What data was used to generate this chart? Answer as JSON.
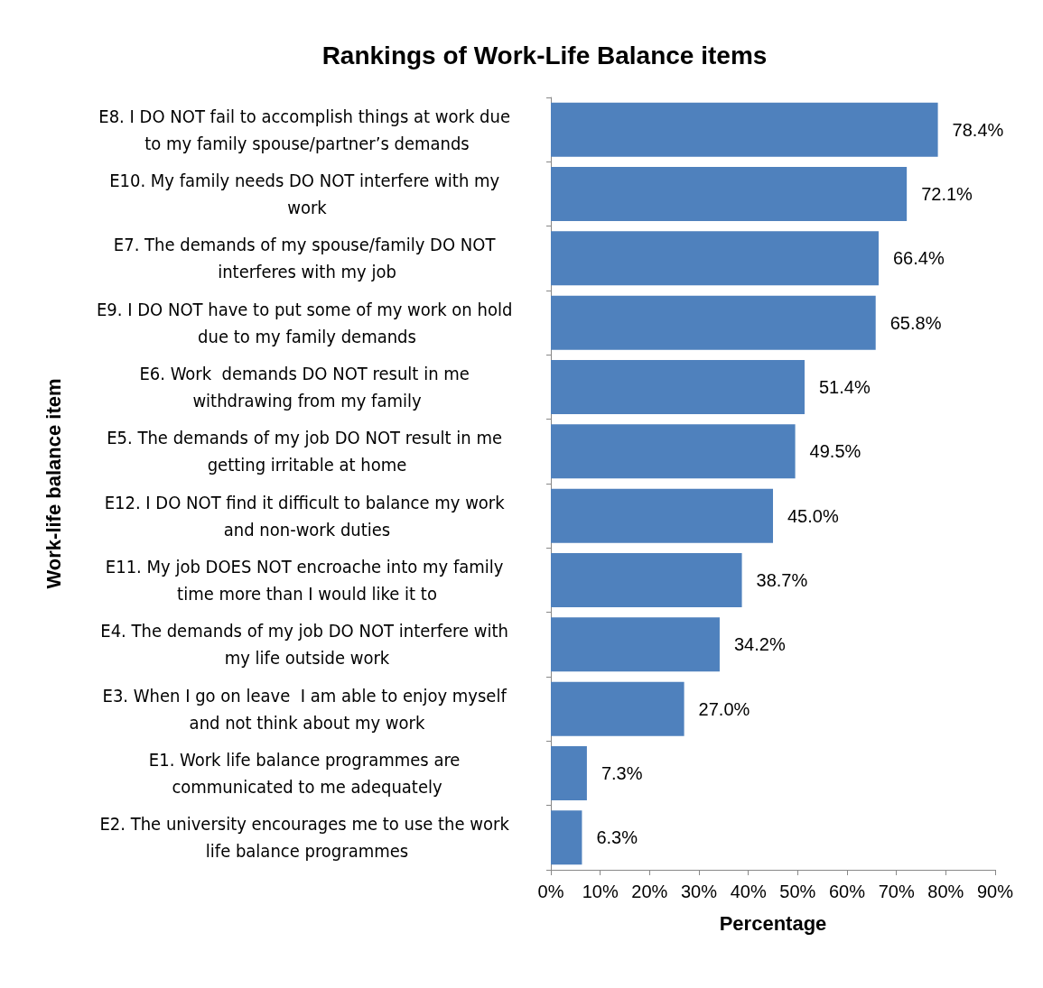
{
  "chart_data": {
    "type": "bar",
    "orientation": "horizontal",
    "title": "Rankings of Work-Life Balance items",
    "xlabel": "Percentage",
    "ylabel": "Work-life balance item",
    "categories": [
      "E8. I DO NOT fail to accomplish things at work due to my family spouse/partner’s demands",
      "E10. My family needs DO NOT interfere with my work",
      "E7. The demands of my spouse/family DO NOT interferes with my job",
      "E9. I DO NOT have to put some of my work on hold due to my family demands",
      "E6. Work  demands DO NOT result in me withdrawing from my family",
      "E5. The demands of my job DO NOT result in me getting irritable at home",
      "E12. I DO NOT find it difficult to balance my work and non-work duties",
      "E11. My job DOES NOT encroache into my family time more than I would like it to",
      "E4. The demands of my job DO NOT interfere with my life outside work",
      "E3. When I go on leave  I am able to enjoy myself and not think about my work",
      "E1. Work life balance programmes are communicated to me adequately",
      "E2. The university encourages me to use the work life balance programmes"
    ],
    "values": [
      78.4,
      72.1,
      66.4,
      65.8,
      51.4,
      49.5,
      45.0,
      38.7,
      34.2,
      27.0,
      7.3,
      6.3
    ],
    "value_labels": [
      "78.4%",
      "72.1%",
      "66.4%",
      "65.8%",
      "51.4%",
      "49.5%",
      "45.0%",
      "38.7%",
      "34.2%",
      "27.0%",
      "7.3%",
      "6.3%"
    ],
    "color": "#4f81bd",
    "xlim": [
      0,
      90
    ],
    "xticks": [
      {
        "value": 0,
        "label": "0%"
      },
      {
        "value": 10,
        "label": "10%"
      },
      {
        "value": 20,
        "label": "20%"
      },
      {
        "value": 30,
        "label": "30%"
      },
      {
        "value": 40,
        "label": "40%"
      },
      {
        "value": 50,
        "label": "50%"
      },
      {
        "value": 60,
        "label": "60%"
      },
      {
        "value": 70,
        "label": "70%"
      },
      {
        "value": 80,
        "label": "80%"
      },
      {
        "value": 90,
        "label": "90%"
      }
    ],
    "grid": false
  }
}
